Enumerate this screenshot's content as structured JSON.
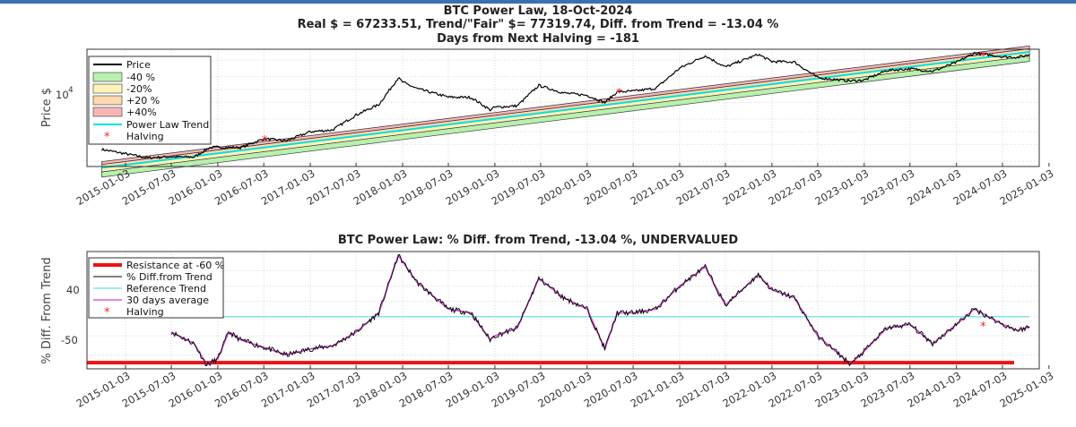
{
  "top": {
    "title_line1": "BTC Power Law, 18-Oct-2024",
    "title_line2": "Real $ = 67233.51, Trend/\"Fair\" $=  77319.74, Diff. from Trend = -13.04 %",
    "title_line3": "Days from Next Halving = -181",
    "ylabel": "Price $",
    "ytick_label": "10",
    "ytick_exp": "4"
  },
  "bottom": {
    "title": "BTC Power Law: % Diff. from Trend, -13.04 %, UNDERVALUED",
    "ylabel": "% Diff. From Trend",
    "ytick_40": "40",
    "ytick_m50": "-50"
  },
  "chart_data": [
    {
      "type": "line",
      "title": "BTC Power Law, 18-Oct-2024",
      "ylabel": "Price $",
      "yscale": "log",
      "grid": true,
      "legend_position": "top-left",
      "x_ticks": [
        "2015-01-03",
        "2015-07-03",
        "2016-01-03",
        "2016-07-03",
        "2017-01-03",
        "2017-07-03",
        "2018-01-03",
        "2018-07-03",
        "2019-01-03",
        "2019-07-03",
        "2020-01-03",
        "2020-07-03",
        "2021-01-03",
        "2021-07-03",
        "2022-01-03",
        "2022-07-03",
        "2023-01-03",
        "2023-07-03",
        "2024-01-03",
        "2024-07-03",
        "2025-01-03"
      ],
      "legend": [
        "Price",
        "-40 %",
        "-20%",
        "+20 %",
        "+40%",
        "Power Law Trend",
        "Halving"
      ],
      "colors": {
        "price": "#000000",
        "band_m40": "#b8f0b0",
        "band_m20": "#fff3b8",
        "band_p20": "#ffd9b0",
        "band_p40": "#f7b6b6",
        "trend": "#00e0e0",
        "halving": "#ff2020"
      },
      "series_price": [
        {
          "x": "2014-10-01",
          "y": 380
        },
        {
          "x": "2015-01-03",
          "y": 300
        },
        {
          "x": "2015-04-01",
          "y": 240
        },
        {
          "x": "2015-07-03",
          "y": 255
        },
        {
          "x": "2015-10-01",
          "y": 250
        },
        {
          "x": "2015-12-01",
          "y": 420
        },
        {
          "x": "2016-01-03",
          "y": 430
        },
        {
          "x": "2016-04-01",
          "y": 420
        },
        {
          "x": "2016-07-03",
          "y": 680
        },
        {
          "x": "2016-10-01",
          "y": 610
        },
        {
          "x": "2017-01-03",
          "y": 1000
        },
        {
          "x": "2017-04-01",
          "y": 1100
        },
        {
          "x": "2017-07-03",
          "y": 2500
        },
        {
          "x": "2017-10-01",
          "y": 4400
        },
        {
          "x": "2017-12-17",
          "y": 19000
        },
        {
          "x": "2018-01-03",
          "y": 15000
        },
        {
          "x": "2018-03-01",
          "y": 10500
        },
        {
          "x": "2018-07-03",
          "y": 6600
        },
        {
          "x": "2018-10-01",
          "y": 6500
        },
        {
          "x": "2018-12-15",
          "y": 3300
        },
        {
          "x": "2019-01-03",
          "y": 3800
        },
        {
          "x": "2019-04-01",
          "y": 4100
        },
        {
          "x": "2019-06-26",
          "y": 12500
        },
        {
          "x": "2019-10-01",
          "y": 8300
        },
        {
          "x": "2020-01-03",
          "y": 7300
        },
        {
          "x": "2020-03-13",
          "y": 4900
        },
        {
          "x": "2020-05-01",
          "y": 8800
        },
        {
          "x": "2020-07-03",
          "y": 9100
        },
        {
          "x": "2020-10-01",
          "y": 10700
        },
        {
          "x": "2021-01-03",
          "y": 32000
        },
        {
          "x": "2021-04-14",
          "y": 63000
        },
        {
          "x": "2021-07-03",
          "y": 34000
        },
        {
          "x": "2021-11-10",
          "y": 68000
        },
        {
          "x": "2022-01-03",
          "y": 46000
        },
        {
          "x": "2022-04-01",
          "y": 45000
        },
        {
          "x": "2022-07-03",
          "y": 19000
        },
        {
          "x": "2022-11-10",
          "y": 16000
        },
        {
          "x": "2023-01-03",
          "y": 16700
        },
        {
          "x": "2023-04-01",
          "y": 28000
        },
        {
          "x": "2023-07-03",
          "y": 31000
        },
        {
          "x": "2023-10-01",
          "y": 27000
        },
        {
          "x": "2024-01-03",
          "y": 44000
        },
        {
          "x": "2024-03-14",
          "y": 73000
        },
        {
          "x": "2024-07-03",
          "y": 60000
        },
        {
          "x": "2024-09-01",
          "y": 58000
        },
        {
          "x": "2024-10-18",
          "y": 67233.51
        }
      ],
      "trend_points": [
        {
          "x": "2014-10-01",
          "y": 140
        },
        {
          "x": "2024-10-18",
          "y": 77319.74
        }
      ],
      "band_offsets_percent": [
        -40,
        -20,
        20,
        40
      ],
      "halvings": [
        {
          "x": "2016-07-09",
          "y": 650
        },
        {
          "x": "2020-05-11",
          "y": 8600
        },
        {
          "x": "2024-04-20",
          "y": 64000
        }
      ],
      "current": {
        "real": 67233.51,
        "trend": 77319.74,
        "diff_percent": -13.04,
        "days_from_next_halving": -181
      }
    },
    {
      "type": "line",
      "title": "BTC Power Law: % Diff. from Trend, -13.04 %, UNDERVALUED",
      "ylabel": "% Diff. From Trend",
      "ylim": [
        -68,
        85
      ],
      "grid": true,
      "legend_position": "top-left",
      "legend": [
        "Resistance at -60 %",
        "% Diff.from Trend",
        "Reference Trend",
        "30 days average",
        "Halving"
      ],
      "resistance": -60,
      "reference": 0,
      "series_diff": [
        {
          "x": "2015-07-03",
          "y": -20
        },
        {
          "x": "2015-10-01",
          "y": -35
        },
        {
          "x": "2015-11-20",
          "y": -63
        },
        {
          "x": "2016-01-03",
          "y": -55
        },
        {
          "x": "2016-02-15",
          "y": -20
        },
        {
          "x": "2016-04-01",
          "y": -30
        },
        {
          "x": "2016-07-03",
          "y": -40
        },
        {
          "x": "2016-10-01",
          "y": -50
        },
        {
          "x": "2017-01-03",
          "y": -42
        },
        {
          "x": "2017-04-01",
          "y": -38
        },
        {
          "x": "2017-07-03",
          "y": -20
        },
        {
          "x": "2017-10-01",
          "y": 5
        },
        {
          "x": "2017-12-17",
          "y": 80
        },
        {
          "x": "2018-03-01",
          "y": 45
        },
        {
          "x": "2018-07-03",
          "y": 10
        },
        {
          "x": "2018-10-01",
          "y": 5
        },
        {
          "x": "2018-12-15",
          "y": -30
        },
        {
          "x": "2019-01-03",
          "y": -25
        },
        {
          "x": "2019-04-01",
          "y": -15
        },
        {
          "x": "2019-06-26",
          "y": 50
        },
        {
          "x": "2019-10-01",
          "y": 25
        },
        {
          "x": "2020-01-03",
          "y": 10
        },
        {
          "x": "2020-03-13",
          "y": -42
        },
        {
          "x": "2020-05-01",
          "y": 5
        },
        {
          "x": "2020-07-03",
          "y": 5
        },
        {
          "x": "2020-10-01",
          "y": 10
        },
        {
          "x": "2021-01-03",
          "y": 40
        },
        {
          "x": "2021-04-14",
          "y": 65
        },
        {
          "x": "2021-07-03",
          "y": 15
        },
        {
          "x": "2021-11-10",
          "y": 55
        },
        {
          "x": "2022-01-03",
          "y": 35
        },
        {
          "x": "2022-04-01",
          "y": 25
        },
        {
          "x": "2022-07-03",
          "y": -25
        },
        {
          "x": "2022-11-10",
          "y": -62
        },
        {
          "x": "2023-01-03",
          "y": -45
        },
        {
          "x": "2023-04-01",
          "y": -15
        },
        {
          "x": "2023-07-03",
          "y": -10
        },
        {
          "x": "2023-10-01",
          "y": -35
        },
        {
          "x": "2024-01-03",
          "y": -10
        },
        {
          "x": "2024-03-14",
          "y": 10
        },
        {
          "x": "2024-07-03",
          "y": -10
        },
        {
          "x": "2024-09-01",
          "y": -18
        },
        {
          "x": "2024-10-18",
          "y": -13.04
        }
      ],
      "halvings": [
        {
          "x": "2024-04-20",
          "y": -12
        }
      ],
      "colors": {
        "resistance": "#ee1111",
        "diff": "#000000",
        "reference": "#66e0e8",
        "avg": "#cc44cc",
        "halving": "#ff2020"
      }
    }
  ]
}
